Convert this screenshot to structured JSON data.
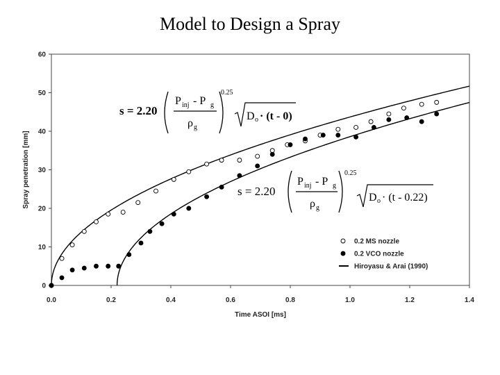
{
  "slide": {
    "title": "Model to Design a Spray"
  },
  "chart_data": {
    "type": "scatter",
    "title": "",
    "xlabel": "Time ASOI [ms]",
    "ylabel": "Spray penetration [mm]",
    "xlim": [
      0.0,
      1.4
    ],
    "ylim": [
      0,
      60
    ],
    "xticks": [
      "0.0",
      "0.2",
      "0.4",
      "0.6",
      "0.8",
      "1.0",
      "1.2",
      "1.4"
    ],
    "yticks": [
      "0",
      "10",
      "20",
      "30",
      "40",
      "50",
      "60"
    ],
    "grid": false,
    "legend": {
      "placement": "bottom-right"
    },
    "series": [
      {
        "name": "0.2 MS nozzle",
        "marker": "open-circle",
        "x": [
          0.0,
          0.035,
          0.07,
          0.11,
          0.15,
          0.19,
          0.24,
          0.29,
          0.35,
          0.41,
          0.46,
          0.52,
          0.57,
          0.63,
          0.69,
          0.74,
          0.79,
          0.85,
          0.9,
          0.96,
          1.02,
          1.07,
          1.13,
          1.18,
          1.24,
          1.29
        ],
        "y": [
          0,
          7,
          10.5,
          14,
          16.5,
          18.5,
          19,
          21.5,
          24.5,
          27.5,
          29.5,
          31.5,
          32.5,
          32.5,
          33.5,
          35,
          36.5,
          37.5,
          39,
          40.5,
          41,
          42.5,
          44.5,
          46,
          47,
          47.5
        ]
      },
      {
        "name": "0.2 VCO nozzle",
        "marker": "filled-circle",
        "x": [
          0.0,
          0.035,
          0.07,
          0.11,
          0.15,
          0.19,
          0.225,
          0.26,
          0.3,
          0.33,
          0.37,
          0.41,
          0.46,
          0.52,
          0.57,
          0.63,
          0.69,
          0.74,
          0.8,
          0.85,
          0.91,
          0.96,
          1.02,
          1.08,
          1.13,
          1.19,
          1.24,
          1.29
        ],
        "y": [
          0,
          2,
          4,
          4.5,
          5,
          5,
          5,
          8,
          11,
          14,
          16,
          18.5,
          20,
          23,
          25.5,
          28.5,
          31,
          34,
          36.5,
          38,
          39,
          39,
          38.5,
          41,
          43,
          43.5,
          42.5,
          44.5
        ]
      },
      {
        "name": "Hiroyasu & Arai (1990)",
        "marker": "line",
        "curves": [
          {
            "t0": 0.0,
            "x_range": [
              0.0,
              1.4
            ],
            "coef": 43.7
          },
          {
            "t0": 0.22,
            "x_range": [
              0.22,
              1.4
            ],
            "coef": 43.7
          }
        ]
      }
    ],
    "annotations": {
      "eq1": {
        "lhs": "s = 2.20",
        "num_a": "P",
        "num_a_sub": "inj",
        "num_b": " - P",
        "num_b_sub": "g",
        "den": "ρ",
        "den_sub": "g",
        "exp": "0.25",
        "root": "D",
        "root_sub": "o",
        "root_tail": "· (t - 0)"
      },
      "eq2": {
        "lhs": "s = 2.20",
        "num_a": "P",
        "num_a_sub": "inj",
        "num_b": " - P",
        "num_b_sub": "g",
        "den": "ρ",
        "den_sub": "g",
        "exp": "0.25",
        "root": "D",
        "root_sub": "o",
        "root_tail": "· (t - 0.22)"
      }
    }
  }
}
